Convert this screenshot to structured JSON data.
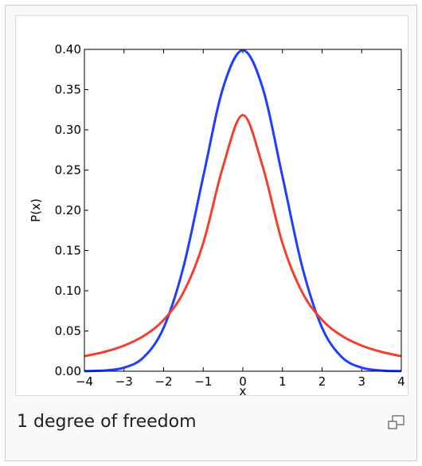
{
  "caption": "1 degree of freedom",
  "icons": {
    "magnify": "magnify-icon"
  },
  "chart_data": {
    "type": "line",
    "title": "",
    "xlabel": "x",
    "ylabel": "P(x)",
    "xlim": [
      -4,
      4
    ],
    "ylim": [
      0,
      0.4
    ],
    "grid": false,
    "x_ticks": [
      -4,
      -3,
      -2,
      -1,
      0,
      1,
      2,
      3,
      4
    ],
    "x_tick_labels": [
      "−4",
      "−3",
      "−2",
      "−1",
      "0",
      "1",
      "2",
      "3",
      "4"
    ],
    "y_ticks": [
      0,
      0.05,
      0.1,
      0.15,
      0.2,
      0.25,
      0.3,
      0.35,
      0.4
    ],
    "y_tick_labels": [
      "0.00",
      "0.05",
      "0.10",
      "0.15",
      "0.20",
      "0.25",
      "0.30",
      "0.35",
      "0.40"
    ],
    "x": [
      -4,
      -3.5,
      -3,
      -2.5,
      -2,
      -1.5,
      -1,
      -0.5,
      0,
      0.5,
      1,
      1.5,
      2,
      2.5,
      3,
      3.5,
      4
    ],
    "series": [
      {
        "color": "#1f3fff",
        "values": [
          0.0001,
          0.0009,
          0.0044,
          0.0175,
          0.054,
          0.1295,
          0.242,
          0.3521,
          0.3989,
          0.3521,
          0.242,
          0.1295,
          0.054,
          0.0175,
          0.0044,
          0.0009,
          0.0001
        ]
      },
      {
        "color": "#ef4030",
        "values": [
          0.0187,
          0.024,
          0.0318,
          0.0439,
          0.0637,
          0.0979,
          0.1592,
          0.2546,
          0.3183,
          0.2546,
          0.1592,
          0.0979,
          0.0637,
          0.0439,
          0.0318,
          0.024,
          0.0187
        ]
      }
    ]
  }
}
